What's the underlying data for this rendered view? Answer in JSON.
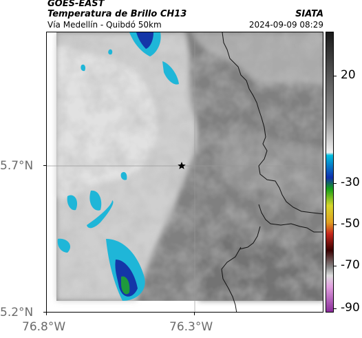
{
  "header": {
    "satellite": "GOES-EAST",
    "product": "Temperatura de Brillo CH13",
    "subtitle": "Vía Medellín - Quibdó 50km",
    "organization": "SIATA",
    "timestamp": "2024-09-09 08:29"
  },
  "axes": {
    "lat_ticks": [
      {
        "label": "5.7°N",
        "value": 5.7
      },
      {
        "label": "5.2°N",
        "value": 5.2
      }
    ],
    "lon_ticks": [
      {
        "label": "76.8°W",
        "value": -76.8
      },
      {
        "label": "76.3°W",
        "value": -76.3
      }
    ]
  },
  "colorbar": {
    "labels": [
      "20",
      "-30",
      "-50",
      "-70",
      "-90"
    ],
    "stops": [
      {
        "t": 0.0,
        "color": "#1a1a1a"
      },
      {
        "t": 0.3,
        "color": "#8c8c8c"
      },
      {
        "t": 0.43,
        "color": "#f2f2f2"
      },
      {
        "t": 0.44,
        "color": "#00bfdf"
      },
      {
        "t": 0.52,
        "color": "#0f2fae"
      },
      {
        "t": 0.56,
        "color": "#16a016"
      },
      {
        "t": 0.62,
        "color": "#d6d62c"
      },
      {
        "t": 0.68,
        "color": "#e0a020"
      },
      {
        "t": 0.72,
        "color": "#c8281e"
      },
      {
        "t": 0.78,
        "color": "#3a0000"
      },
      {
        "t": 0.84,
        "color": "#8a8a8a"
      },
      {
        "t": 0.87,
        "color": "#dcdcdc"
      },
      {
        "t": 0.91,
        "color": "#e2a0e0"
      },
      {
        "t": 1.0,
        "color": "#8a2c9a"
      }
    ]
  },
  "map": {
    "marker": "star-icon",
    "colors": {
      "cloud_free": "#7f7f7f",
      "cloud_light": "#d6d6d6",
      "cloud_cold_cyan": "#1fb6d8",
      "cloud_colder_blue": "#1436a8",
      "cloud_coldest_green": "#1e9a3c",
      "gridline": "#999999",
      "border": "#111111"
    }
  }
}
